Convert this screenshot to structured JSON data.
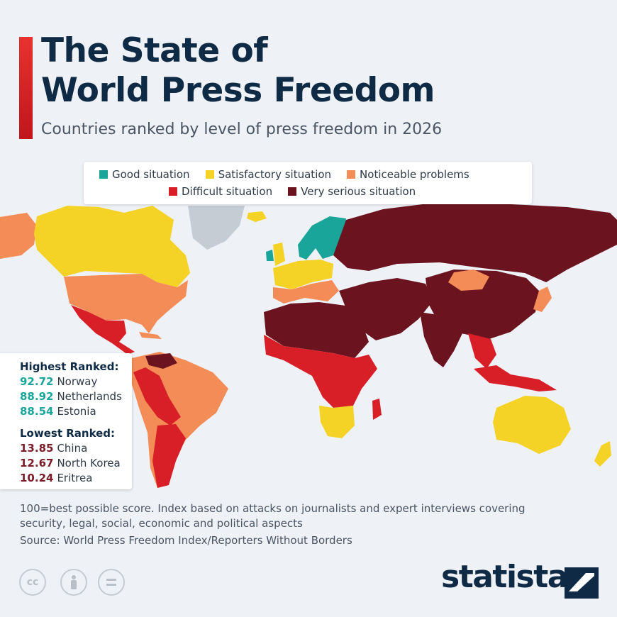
{
  "title_line1": "The State of",
  "title_line2": "World Press Freedom",
  "subtitle": "Countries ranked by level of press freedom in 2026",
  "legend": [
    {
      "label": "Good situation",
      "color": "#1aa59a"
    },
    {
      "label": "Satisfactory situation",
      "color": "#f5d326"
    },
    {
      "label": "Noticeable problems",
      "color": "#f48c57"
    },
    {
      "label": "Difficult situation",
      "color": "#d81f27"
    },
    {
      "label": "Very serious situation",
      "color": "#6b141f"
    }
  ],
  "map_colors": {
    "greenland": "#c6ccd3",
    "unranked": "#c6ccd3",
    "water": "#eef1f5"
  },
  "highest": {
    "heading": "Highest Ranked:",
    "items": [
      {
        "score": "92.72",
        "country": "Norway"
      },
      {
        "score": "88.92",
        "country": "Netherlands"
      },
      {
        "score": "88.54",
        "country": "Estonia"
      }
    ],
    "color": "#1aa59a"
  },
  "lowest": {
    "heading": "Lowest Ranked:",
    "items": [
      {
        "score": "13.85",
        "country": "China"
      },
      {
        "score": "12.67",
        "country": "North Korea"
      },
      {
        "score": "10.24",
        "country": "Eritrea"
      }
    ],
    "color": "#7a1b27"
  },
  "footnote": "100=best possible score. Index based on attacks on journalists and expert interviews covering security, legal, social, economic and political aspects",
  "source": "Source: World Press Freedom Index/Reporters Without Borders",
  "license_icons": [
    "cc-icon",
    "attribution-icon",
    "no-derivatives-icon"
  ],
  "logo_text": "statista"
}
